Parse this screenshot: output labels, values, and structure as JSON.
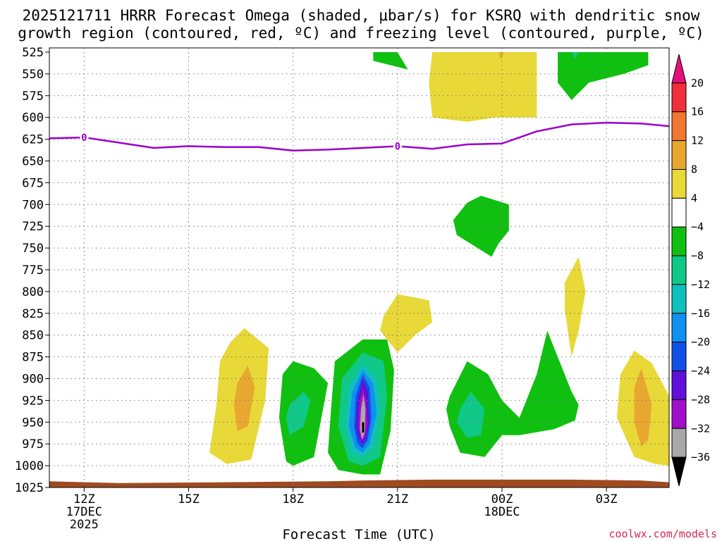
{
  "chart_data": {
    "type": "heatmap",
    "title_line1": "2025121711 HRRR Forecast Omega (shaded, μbar/s) for KSRQ with dendritic snow",
    "title_line2": "growth region (contoured, red, ºC) and freezing level (contoured, purple, ºC)",
    "xlabel": "Forecast Time (UTC)",
    "credit": "coolwx.com/models",
    "x_range": [
      11,
      28.8
    ],
    "y_range": [
      525,
      1025
    ],
    "x_ticks": [
      {
        "x": 12,
        "lines": [
          "12Z",
          "17DEC",
          "2025"
        ]
      },
      {
        "x": 15,
        "lines": [
          "15Z"
        ]
      },
      {
        "x": 18,
        "lines": [
          "18Z"
        ]
      },
      {
        "x": 21,
        "lines": [
          "21Z"
        ]
      },
      {
        "x": 24,
        "lines": [
          "00Z",
          "18DEC"
        ]
      },
      {
        "x": 27,
        "lines": [
          "03Z"
        ]
      }
    ],
    "y_ticks": [
      525,
      550,
      575,
      600,
      625,
      650,
      675,
      700,
      725,
      750,
      775,
      800,
      825,
      850,
      875,
      900,
      925,
      950,
      975,
      1000,
      1025
    ],
    "colorbar": {
      "labels": [
        "20",
        "16",
        "12",
        "8",
        "4",
        "−4",
        "−8",
        "−12",
        "−16",
        "−20",
        "−24",
        "−28",
        "−32",
        "−36"
      ],
      "colors": [
        "#e8107c",
        "#f0303a",
        "#f07830",
        "#e8a830",
        "#e8d838",
        "#ffffff",
        "#10c010",
        "#10c888",
        "#10c0c0",
        "#1090f0",
        "#1050e8",
        "#6010d8",
        "#a010c8",
        "#a8a8a8",
        "#000000"
      ]
    },
    "freezing_level": {
      "label": "0",
      "x": [
        11,
        12,
        13,
        14,
        15,
        16,
        17,
        18,
        19,
        20,
        21,
        22,
        23,
        24,
        25,
        26,
        27,
        28,
        28.8
      ],
      "p": [
        624,
        623,
        629,
        635,
        633,
        634,
        634,
        638,
        637,
        635,
        633,
        636,
        631,
        630,
        616,
        608,
        606,
        607,
        610
      ]
    },
    "ground": {
      "color": "#a04a20",
      "x": [
        11,
        13,
        16,
        19,
        20,
        22,
        24,
        26,
        28,
        28.8
      ],
      "p": [
        1018,
        1020,
        1019,
        1018,
        1017,
        1016,
        1016,
        1016,
        1017,
        1019
      ]
    },
    "regions": [
      {
        "name": "green-top-a",
        "color": "#10c010",
        "x": [
          20.3,
          21,
          21.3,
          20.3
        ],
        "p": [
          525,
          525,
          545,
          535
        ]
      },
      {
        "name": "yellow-top",
        "color": "#e8d838",
        "x": [
          22,
          24,
          25,
          25,
          23.8,
          23,
          22,
          21.9
        ],
        "p": [
          525,
          525,
          525,
          600,
          600,
          605,
          600,
          560
        ]
      },
      {
        "name": "orange-top-sliver",
        "color": "#e8a830",
        "x": [
          23.9,
          24.05,
          24,
          23.95
        ],
        "p": [
          525,
          525,
          532,
          532
        ]
      },
      {
        "name": "green-top-b",
        "color": "#10c010",
        "x": [
          25.6,
          28.2,
          28.2,
          27.5,
          26.5,
          26,
          25.6
        ],
        "p": [
          525,
          525,
          540,
          550,
          560,
          580,
          560
        ]
      },
      {
        "name": "teal-top-sliver",
        "color": "#10c888",
        "x": [
          26,
          26.2,
          26.1
        ],
        "p": [
          525,
          525,
          532
        ]
      },
      {
        "name": "green-mid",
        "color": "#10c010",
        "x": [
          22.6,
          23,
          23.4,
          24.2,
          24.2,
          23.9,
          23.7,
          22.7
        ],
        "p": [
          718,
          698,
          690,
          700,
          730,
          745,
          760,
          735
        ]
      },
      {
        "name": "yellow-mid-right",
        "color": "#e8d838",
        "x": [
          25.8,
          26.2,
          26.4,
          26.2,
          26.0,
          25.8
        ],
        "p": [
          790,
          760,
          800,
          845,
          875,
          820
        ]
      },
      {
        "name": "yellow-mid",
        "color": "#e8d838",
        "x": [
          20.6,
          21,
          21.9,
          22,
          21.5,
          21,
          20.5
        ],
        "p": [
          828,
          803,
          810,
          835,
          850,
          870,
          845
        ]
      },
      {
        "name": "yellow-a",
        "color": "#e8d838",
        "x": [
          15.9,
          16.2,
          16.6,
          17.3,
          17.2,
          16.8,
          16.1,
          15.6,
          15.8
        ],
        "p": [
          880,
          858,
          842,
          865,
          925,
          993,
          998,
          985,
          930
        ]
      },
      {
        "name": "orange-a",
        "color": "#e8a830",
        "x": [
          16.4,
          16.7,
          16.9,
          16.7,
          16.4,
          16.3
        ],
        "p": [
          905,
          885,
          910,
          955,
          960,
          930
        ]
      },
      {
        "name": "green-a",
        "color": "#10c010",
        "x": [
          17.7,
          18,
          18.6,
          19,
          18.6,
          18,
          17.8,
          17.6
        ],
        "p": [
          895,
          880,
          888,
          905,
          990,
          1000,
          995,
          945
        ]
      },
      {
        "name": "teal-a",
        "color": "#10c888",
        "x": [
          17.9,
          18.3,
          18.5,
          18.3,
          17.9,
          17.8
        ],
        "p": [
          930,
          915,
          925,
          955,
          965,
          945
        ]
      },
      {
        "name": "green-core",
        "color": "#10c010",
        "x": [
          19.2,
          20,
          20.7,
          20.9,
          20.8,
          20.5,
          20,
          19.3,
          19,
          19.1
        ],
        "p": [
          880,
          855,
          855,
          890,
          960,
          1010,
          1010,
          1005,
          985,
          930
        ]
      },
      {
        "name": "teal-core",
        "color": "#10c888",
        "x": [
          19.4,
          20,
          20.6,
          20.7,
          20.5,
          20,
          19.6,
          19.3
        ],
        "p": [
          900,
          870,
          880,
          920,
          990,
          1000,
          995,
          955
        ]
      },
      {
        "name": "cyan-core",
        "color": "#10c0c0",
        "x": [
          19.6,
          20,
          20.4,
          20.5,
          20.3,
          20,
          19.7,
          19.5
        ],
        "p": [
          910,
          883,
          900,
          935,
          980,
          990,
          985,
          955
        ]
      },
      {
        "name": "blue-core",
        "color": "#1090f0",
        "x": [
          19.7,
          20,
          20.3,
          20.4,
          20.2,
          20,
          19.8,
          19.6
        ],
        "p": [
          915,
          890,
          905,
          940,
          975,
          985,
          980,
          955
        ]
      },
      {
        "name": "darkblue-core",
        "color": "#1050e8",
        "x": [
          19.8,
          20,
          20.2,
          20.25,
          20.15,
          20,
          19.85,
          19.75
        ],
        "p": [
          920,
          895,
          910,
          945,
          970,
          980,
          975,
          955
        ]
      },
      {
        "name": "purple-core",
        "color": "#6010d8",
        "x": [
          19.85,
          20,
          20.15,
          20.2,
          20.1,
          20,
          19.9,
          19.8
        ],
        "p": [
          925,
          900,
          915,
          950,
          968,
          976,
          970,
          955
        ]
      },
      {
        "name": "magenta-core",
        "color": "#a010c8",
        "x": [
          19.9,
          20,
          20.1,
          20.13,
          20.05,
          19.95,
          19.87
        ],
        "p": [
          930,
          910,
          925,
          955,
          968,
          972,
          955
        ]
      },
      {
        "name": "gray-core",
        "color": "#a8a8a8",
        "x": [
          19.95,
          20.02,
          20.08,
          20.06,
          19.98,
          19.92
        ],
        "p": [
          935,
          918,
          935,
          962,
          970,
          958
        ]
      },
      {
        "name": "black-core",
        "color": "#000000",
        "x": [
          19.98,
          20.04,
          20.04,
          19.98
        ],
        "p": [
          950,
          950,
          962,
          962
        ]
      },
      {
        "name": "green-b",
        "color": "#10c010",
        "x": [
          22.5,
          23,
          23.6,
          24,
          24.5,
          25,
          25.3,
          26,
          26.2,
          26.1,
          25.5,
          24.5,
          24,
          23.5,
          22.8,
          22.5,
          22.4
        ],
        "p": [
          920,
          880,
          895,
          925,
          945,
          895,
          845,
          915,
          930,
          948,
          958,
          965,
          965,
          990,
          985,
          955,
          935
        ]
      },
      {
        "name": "teal-b",
        "color": "#10c888",
        "x": [
          22.8,
          23.1,
          23.5,
          23.4,
          23,
          22.7
        ],
        "p": [
          935,
          915,
          935,
          965,
          968,
          950
        ]
      },
      {
        "name": "yellow-b",
        "color": "#e8d838",
        "x": [
          27.4,
          27.8,
          28.3,
          28.8,
          28.8,
          28.4,
          27.8,
          27.3
        ],
        "p": [
          895,
          868,
          882,
          920,
          1000,
          998,
          990,
          945
        ]
      },
      {
        "name": "orange-b",
        "color": "#e8a830",
        "x": [
          27.8,
          28,
          28.3,
          28.2,
          28,
          27.8
        ],
        "p": [
          910,
          888,
          930,
          970,
          978,
          950
        ]
      }
    ]
  }
}
